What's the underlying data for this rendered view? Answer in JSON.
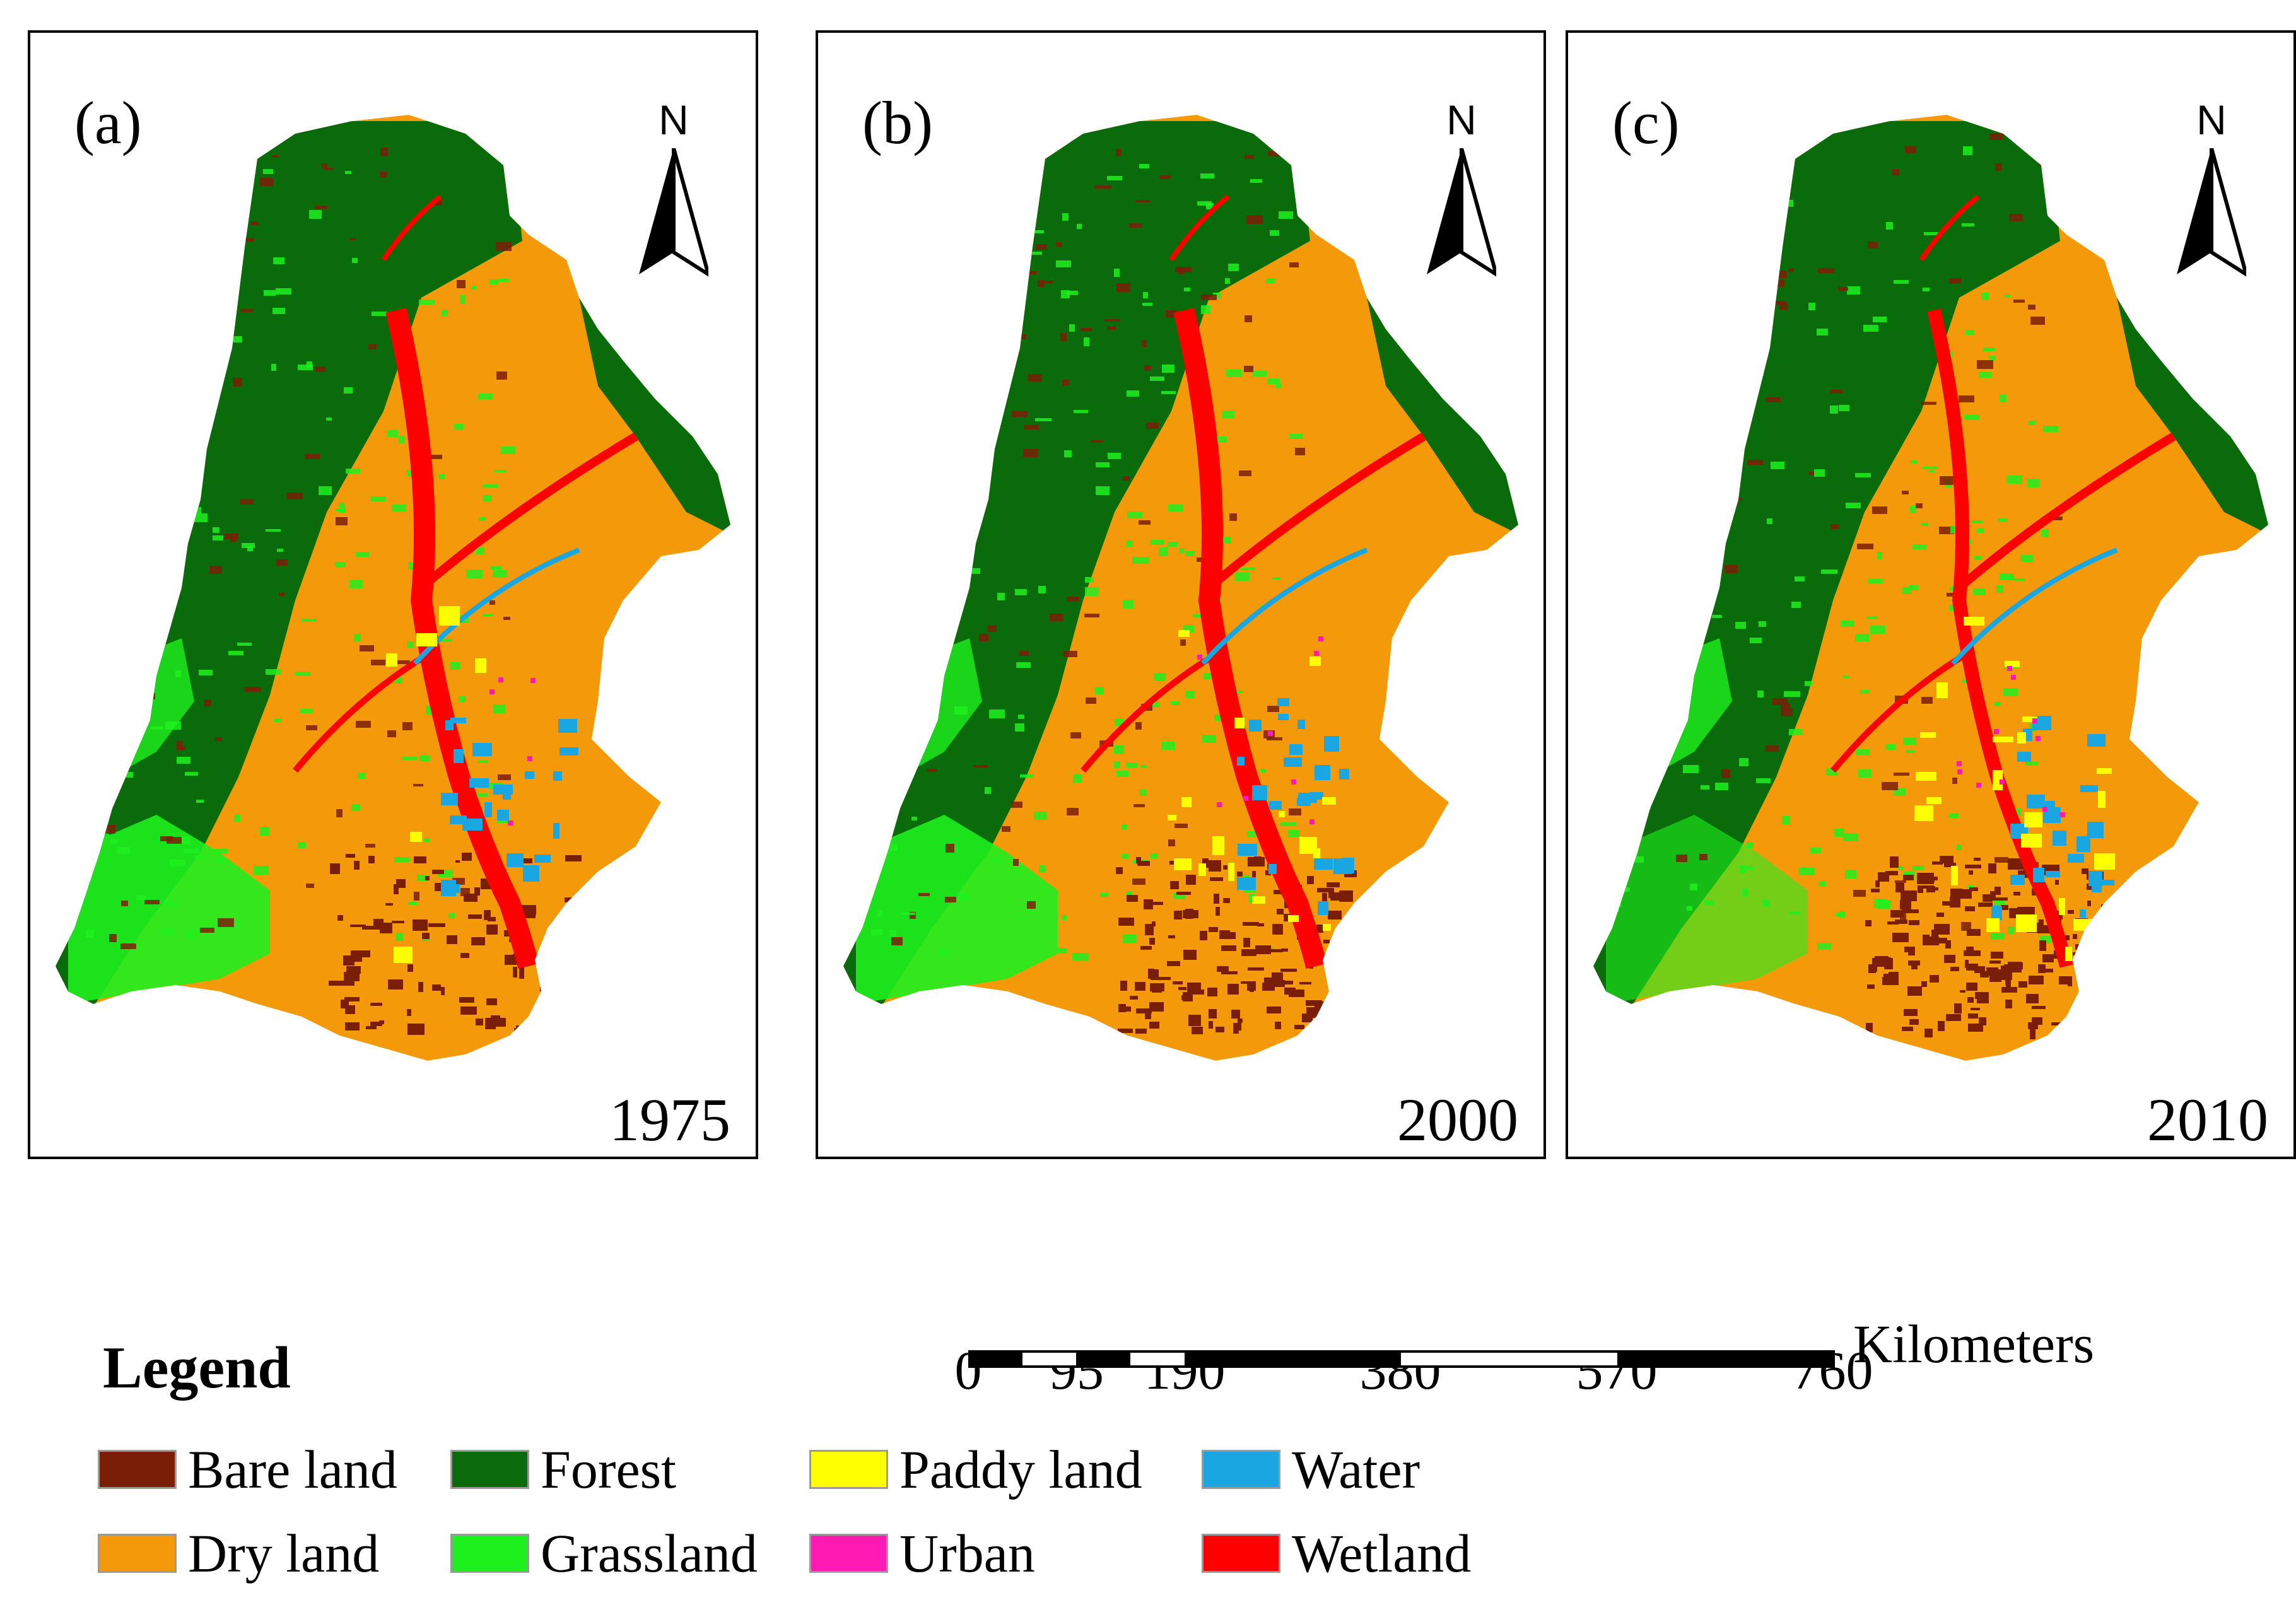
{
  "panels": [
    {
      "label": "(a)",
      "year": "1975"
    },
    {
      "label": "(b)",
      "year": "2000"
    },
    {
      "label": "(c)",
      "year": "2010"
    }
  ],
  "north_arrow": {
    "letter": "N"
  },
  "scale_bar": {
    "ticks": [
      "0",
      "95",
      "190",
      "380",
      "570",
      "760"
    ],
    "tick_values_km": [
      0,
      95,
      190,
      380,
      570,
      760
    ],
    "unit": "Kilometers"
  },
  "legend": {
    "title": "Legend",
    "items": [
      {
        "label": "Bare land",
        "color": "#7b1e08"
      },
      {
        "label": "Forest",
        "color": "#0a6b0a"
      },
      {
        "label": "Paddy land",
        "color": "#ffff00"
      },
      {
        "label": "Water",
        "color": "#1aa6e0"
      },
      {
        "label": "Dry land",
        "color": "#f49a0a"
      },
      {
        "label": "Grassland",
        "color": "#1ef01e"
      },
      {
        "label": "Urban",
        "color": "#ff1ab4"
      },
      {
        "label": "Wetland",
        "color": "#ff0000"
      }
    ]
  }
}
